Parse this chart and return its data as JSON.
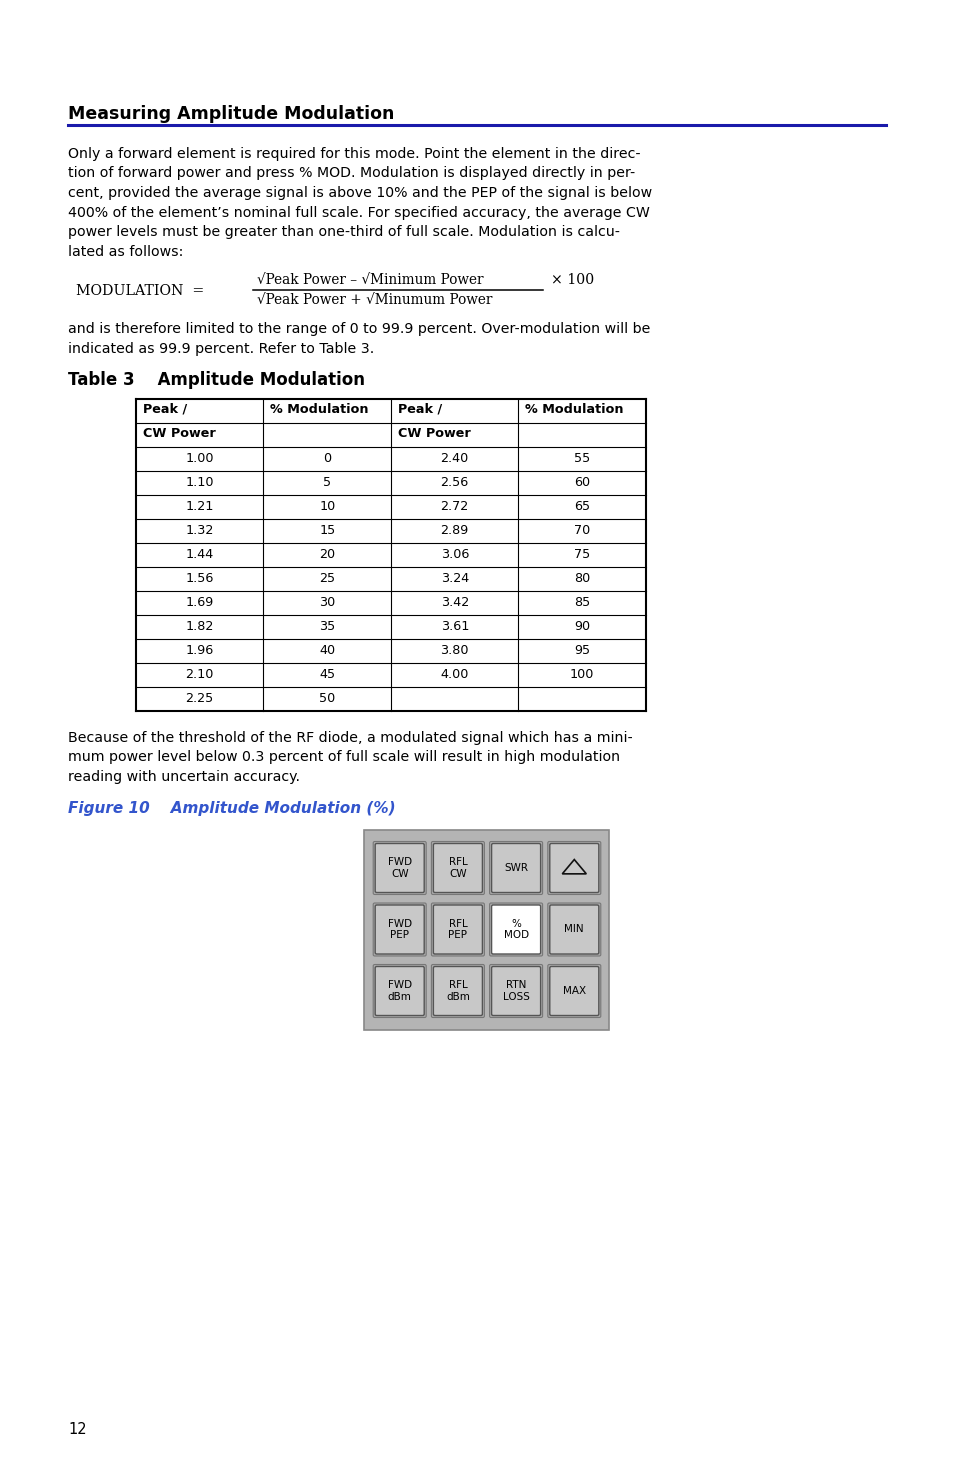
{
  "title": "Measuring Amplitude Modulation",
  "body_text_1_lines": [
    "Only a forward element is required for this mode. Point the element in the direc-",
    "tion of forward power and press % MOD. Modulation is displayed directly in per-",
    "cent, provided the average signal is above 10% and the PEP of the signal is below",
    "400% of the element’s nominal full scale. For specified accuracy, the average CW",
    "power levels must be greater than one-third of full scale. Modulation is calcu-",
    "lated as follows:"
  ],
  "formula_label": "MODULATION  =",
  "formula_numerator": "√Peak Power – √Minimum Power",
  "formula_denominator": "√Peak Power + √Minumum Power",
  "formula_x100": "× 100",
  "body_text_2_lines": [
    "and is therefore limited to the range of 0 to 99.9 percent. Over-modulation will be",
    "indicated as 99.9 percent. Refer to Table 3."
  ],
  "table_title": "Table 3    Amplitude Modulation",
  "table_col_headers": [
    "Peak /\nCW Power",
    "% Modulation",
    "Peak /\nCW Power",
    "% Modulation"
  ],
  "table_data_left": [
    [
      "1.00",
      "0"
    ],
    [
      "1.10",
      "5"
    ],
    [
      "1.21",
      "10"
    ],
    [
      "1.32",
      "15"
    ],
    [
      "1.44",
      "20"
    ],
    [
      "1.56",
      "25"
    ],
    [
      "1.69",
      "30"
    ],
    [
      "1.82",
      "35"
    ],
    [
      "1.96",
      "40"
    ],
    [
      "2.10",
      "45"
    ],
    [
      "2.25",
      "50"
    ]
  ],
  "table_data_right": [
    [
      "2.40",
      "55"
    ],
    [
      "2.56",
      "60"
    ],
    [
      "2.72",
      "65"
    ],
    [
      "2.89",
      "70"
    ],
    [
      "3.06",
      "75"
    ],
    [
      "3.24",
      "80"
    ],
    [
      "3.42",
      "85"
    ],
    [
      "3.61",
      "90"
    ],
    [
      "3.80",
      "95"
    ],
    [
      "4.00",
      "100"
    ],
    [
      "",
      ""
    ]
  ],
  "body_text_3_lines": [
    "Because of the threshold of the RF diode, a modulated signal which has a mini-",
    "mum power level below 0.3 percent of full scale will result in high modulation",
    "reading with uncertain accuracy."
  ],
  "figure_caption": "Figure 10    Amplitude Modulation (%)",
  "button_labels": [
    [
      "FWD\nCW",
      "RFL\nCW",
      "SWR",
      "△"
    ],
    [
      "FWD\nPEP",
      "RFL\nPEP",
      "%\nMOD",
      "MIN"
    ],
    [
      "FWD\ndBm",
      "RFL\ndBm",
      "RTN\nLOSS",
      "MAX"
    ]
  ],
  "highlighted_button": [
    1,
    2
  ],
  "page_number": "12",
  "bg_color": "#ffffff",
  "text_color": "#000000",
  "blue_line_color": "#1a1aaa",
  "figure_caption_color": "#3355cc",
  "table_border_color": "#000000",
  "button_face_color": "#c8c8c8",
  "button_highlight_color": "#ffffff",
  "panel_bg_color": "#b4b4b4"
}
